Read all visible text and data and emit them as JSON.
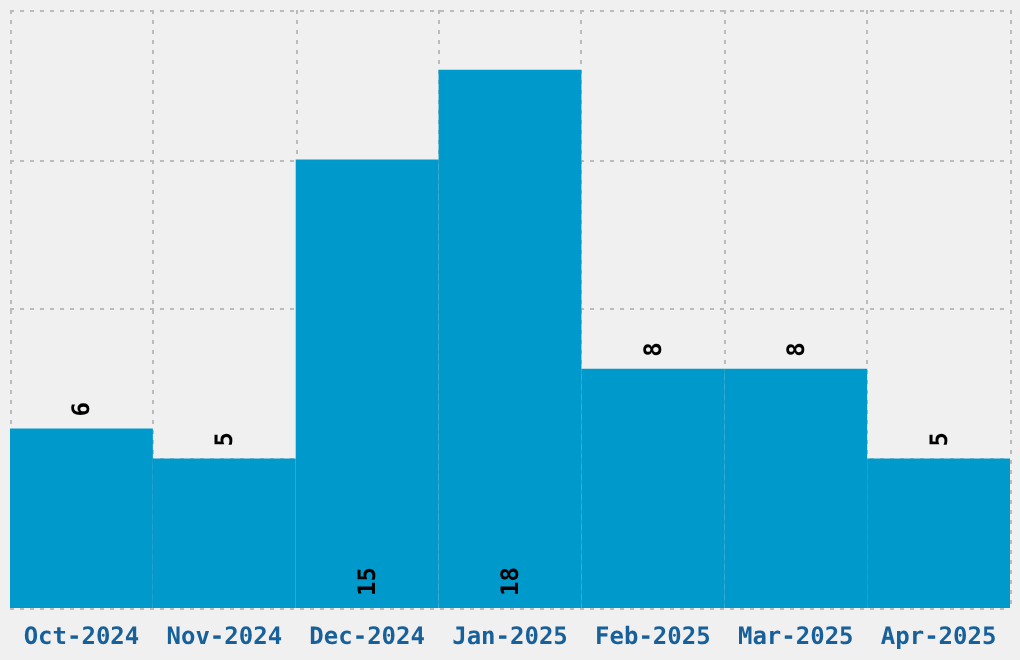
{
  "chart_data": {
    "type": "bar",
    "categories": [
      "Oct-2024",
      "Nov-2024",
      "Dec-2024",
      "Jan-2025",
      "Feb-2025",
      "Mar-2025",
      "Apr-2025"
    ],
    "values": [
      6,
      5,
      15,
      18,
      8,
      8,
      5
    ],
    "color": "#0099cc",
    "ylim": [
      0,
      20
    ],
    "yticks": [
      {
        "value": 0,
        "label": null
      },
      {
        "value": 5,
        "label": null
      },
      {
        "value": 10,
        "label": null
      },
      {
        "value": 15,
        "label": null
      },
      {
        "value": 20,
        "label": null
      }
    ],
    "tick_labels": "x",
    "grid": true,
    "data_labels": true
  }
}
